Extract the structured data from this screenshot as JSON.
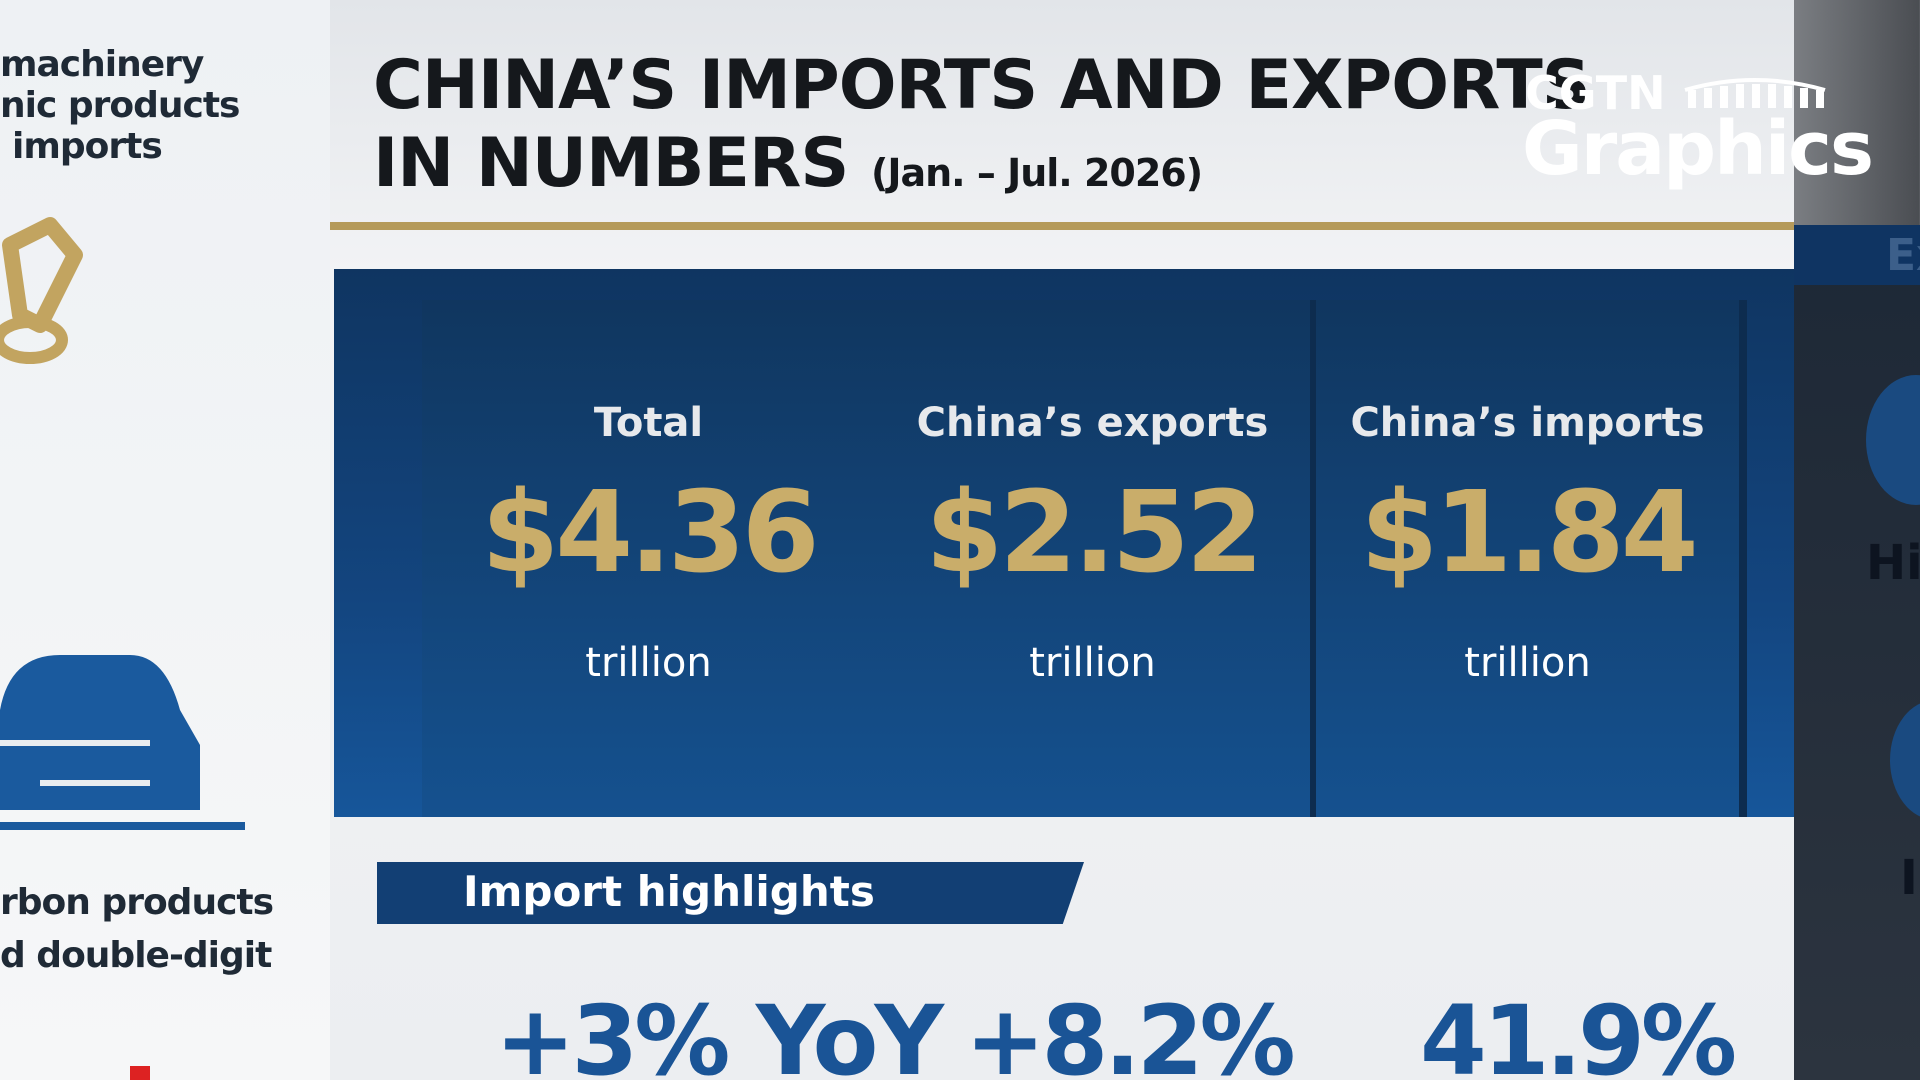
{
  "left_panel": {
    "lines_top": [
      "machinery",
      "nic products",
      "imports"
    ],
    "lines_bottom": [
      "rbon products",
      "d double-digit"
    ]
  },
  "header": {
    "title_line1": "CHINA’S IMPORTS AND EXPORTS",
    "title_line2": "IN NUMBERS",
    "period": "(Jan. – Jul. 2026)"
  },
  "logo": {
    "brand": "CGTN",
    "label": "Graphics"
  },
  "cards": [
    {
      "label": "Total",
      "value": "$4.36",
      "unit": "trillion"
    },
    {
      "label": "China’s exports",
      "value": "$2.52",
      "unit": "trillion"
    },
    {
      "label": "China’s imports",
      "value": "$1.84",
      "unit": "trillion"
    }
  ],
  "highlights": {
    "heading": "Import highlights",
    "figures": [
      "+3% YoY",
      "+8.2%",
      "41.9%"
    ]
  },
  "right_panel": {
    "heading": "Ex",
    "item": "Hi",
    "item2": "I"
  }
}
